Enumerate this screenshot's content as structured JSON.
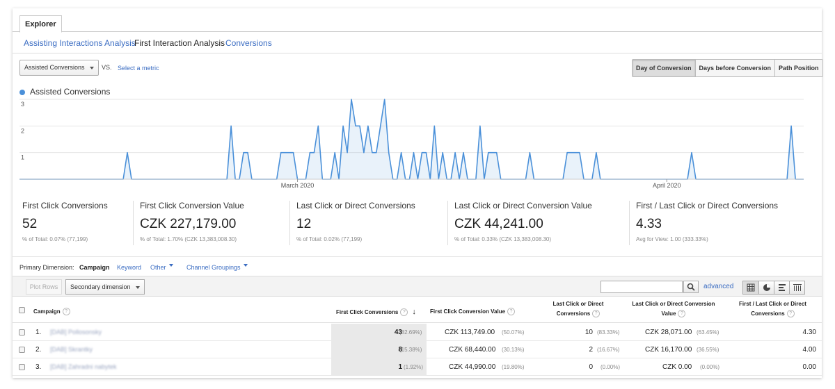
{
  "tabs": {
    "explorer": "Explorer"
  },
  "subtabs": {
    "assisting": "Assisting Interactions Analysis",
    "first": "First Interaction Analysis",
    "conversions": "Conversions"
  },
  "controls": {
    "metric_select": "Assisted Conversions",
    "vs": "VS.",
    "select_metric": "Select a metric",
    "view_modes": [
      "Day of Conversion",
      "Days before Conversion",
      "Path Position"
    ]
  },
  "chart_data": {
    "type": "area",
    "legend": "Assisted Conversions",
    "series_color": "#4a90d9",
    "x_labels": [
      "March 2020",
      "April 2020"
    ],
    "y_ticks": [
      "1",
      "2",
      "3"
    ],
    "ylim": [
      0,
      3
    ],
    "values": [
      0,
      0,
      0,
      0,
      0,
      0,
      0,
      0,
      0,
      0,
      0,
      0,
      0,
      0,
      0,
      0,
      0,
      0,
      0,
      0,
      0,
      0,
      0,
      0,
      0,
      0,
      1,
      0,
      0,
      0,
      0,
      0,
      0,
      0,
      0,
      0,
      0,
      0,
      0,
      0,
      0,
      0,
      0,
      0,
      0,
      0,
      0,
      0,
      0,
      0,
      0,
      2,
      0,
      0,
      1,
      1,
      0,
      0,
      0,
      0,
      0,
      0,
      0,
      1,
      1,
      1,
      1,
      0,
      0,
      0,
      1,
      1,
      2,
      0,
      0,
      0,
      1,
      0,
      2,
      1,
      3,
      2,
      2,
      1,
      2,
      1,
      1,
      2,
      3,
      1,
      0,
      0,
      1,
      0,
      0,
      1,
      0,
      1,
      1,
      0,
      2,
      0,
      1,
      0,
      0,
      1,
      0,
      1,
      0,
      0,
      0,
      2,
      0,
      1,
      1,
      1,
      0,
      0,
      0,
      0,
      0,
      0,
      0,
      1,
      0,
      0,
      0,
      0,
      0,
      0,
      0,
      0,
      1,
      1,
      1,
      1,
      0,
      0,
      0,
      1,
      0,
      0,
      0,
      0,
      0,
      0,
      0,
      0,
      0,
      0,
      0,
      0,
      0,
      0,
      0,
      0,
      0,
      0,
      0,
      0,
      0,
      0,
      1,
      0,
      0,
      0,
      0,
      0,
      0,
      0,
      0,
      0,
      0,
      0,
      0,
      0,
      0,
      0,
      0,
      0,
      0,
      0,
      0,
      0,
      0,
      0,
      2,
      0,
      0,
      0
    ]
  },
  "summary": [
    {
      "title": "First Click Conversions",
      "value": "52",
      "sub": "% of Total: 0.07% (77,199)"
    },
    {
      "title": "First Click Conversion Value",
      "value": "CZK 227,179.00",
      "sub": "% of Total: 1.70% (CZK 13,383,008.30)"
    },
    {
      "title": "Last Click or Direct Conversions",
      "value": "12",
      "sub": "% of Total: 0.02% (77,199)"
    },
    {
      "title": "Last Click or Direct Conversion Value",
      "value": "CZK 44,241.00",
      "sub": "% of Total: 0.33% (CZK 13,383,008.30)"
    },
    {
      "title": "First / Last Click or Direct Conversions",
      "value": "4.33",
      "sub": "Avg for View: 1.00 (333.33%)"
    }
  ],
  "primary_dimension": {
    "label": "Primary Dimension:",
    "campaign": "Campaign",
    "keyword": "Keyword",
    "other": "Other",
    "channel": "Channel Groupings"
  },
  "toolbar": {
    "plot_rows": "Plot Rows",
    "secondary": "Secondary dimension",
    "advanced": "advanced"
  },
  "table": {
    "headers": {
      "campaign": "Campaign",
      "fcc": "First Click Conversions",
      "fcv": "First Click Conversion Value",
      "lcc": "Last Click or Direct Conversions",
      "lcv": "Last Click or Direct Conversion Value",
      "ratio": "First / Last Click or Direct Conversions"
    },
    "rows": [
      {
        "n": "1.",
        "name": "[DAB] Pollosonsky",
        "fcc": "43",
        "fcc_p": "(82.69%)",
        "fcv": "CZK 113,749.00",
        "fcv_p": "(50.07%)",
        "lcc": "10",
        "lcc_p": "(83.33%)",
        "lcv": "CZK 28,071.00",
        "lcv_p": "(63.45%)",
        "ratio": "4.30"
      },
      {
        "n": "2.",
        "name": "[DAB] Skrantky",
        "fcc": "8",
        "fcc_p": "(15.38%)",
        "fcv": "CZK 68,440.00",
        "fcv_p": "(30.13%)",
        "lcc": "2",
        "lcc_p": "(16.67%)",
        "lcv": "CZK 16,170.00",
        "lcv_p": "(36.55%)",
        "ratio": "4.00"
      },
      {
        "n": "3.",
        "name": "[DAB] Zahradni nabytek",
        "fcc": "1",
        "fcc_p": "(1.92%)",
        "fcv": "CZK 44,990.00",
        "fcv_p": "(19.80%)",
        "lcc": "0",
        "lcc_p": "(0.00%)",
        "lcv": "CZK 0.00",
        "lcv_p": "(0.00%)",
        "ratio": "0.00"
      }
    ]
  }
}
